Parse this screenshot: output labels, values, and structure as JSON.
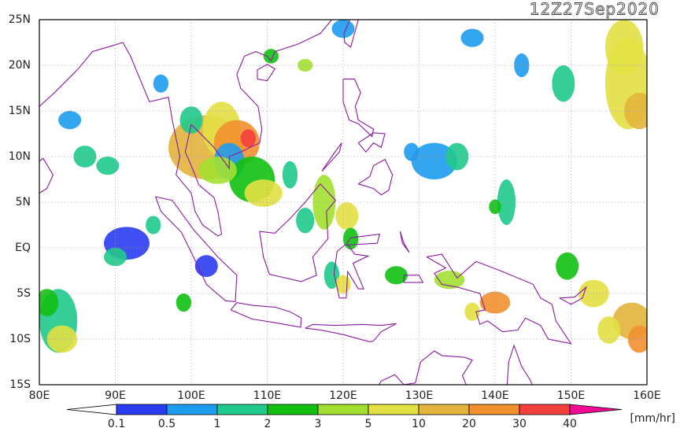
{
  "header": {
    "title": "12Z27Sep2020"
  },
  "map": {
    "lat_labels": [
      "25N",
      "20N",
      "15N",
      "10N",
      "5N",
      "EQ",
      "5S",
      "10S",
      "15S"
    ],
    "lon_labels": [
      "80E",
      "90E",
      "100E",
      "110E",
      "120E",
      "130E",
      "140E",
      "150E",
      "160E"
    ]
  },
  "colorbar": {
    "labels": [
      "0.1",
      "0.5",
      "1",
      "2",
      "3",
      "5",
      "10",
      "20",
      "30",
      "40"
    ],
    "colors": [
      "#ffffff",
      "#2a3cf2",
      "#1e9cf0",
      "#20c98c",
      "#12c012",
      "#a2e030",
      "#e2e042",
      "#e2b43c",
      "#f29030",
      "#f2403c",
      "#f00c92"
    ],
    "unit": "[mm/hr]"
  }
}
